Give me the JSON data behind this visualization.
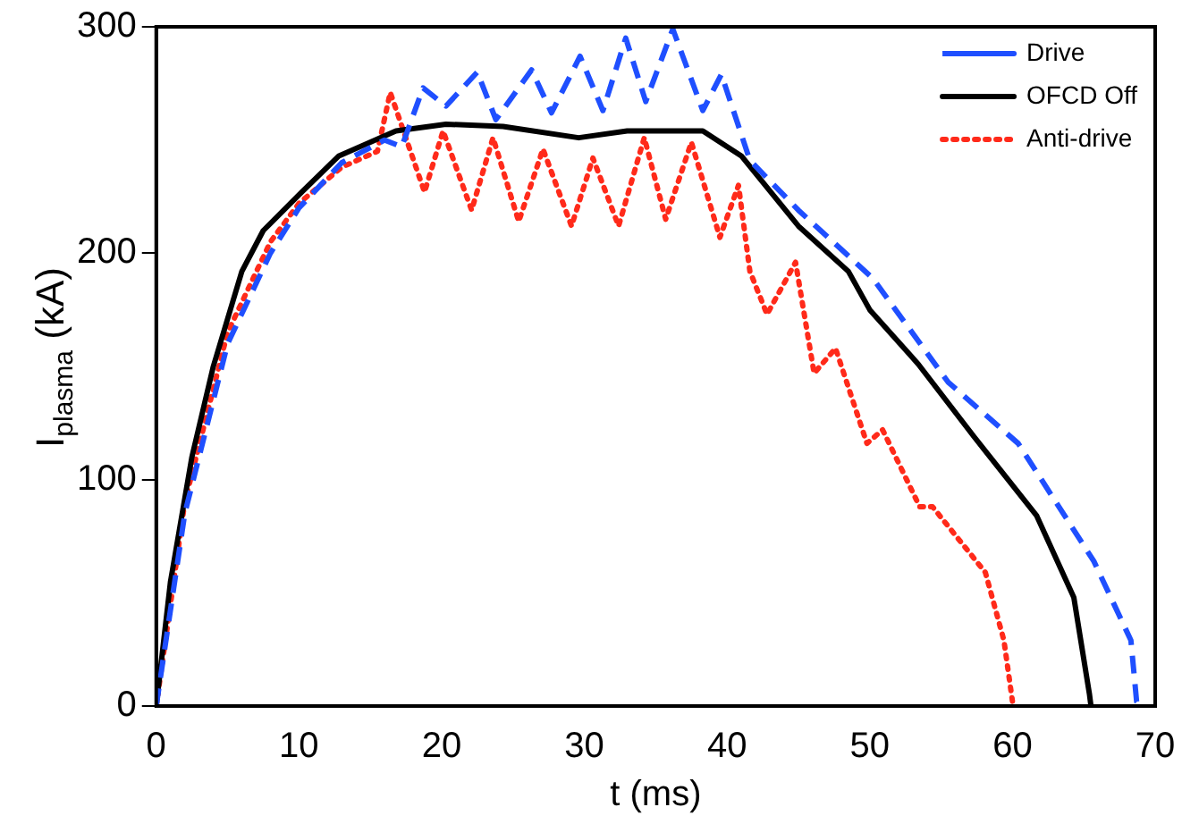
{
  "chart_data": {
    "type": "line",
    "xlabel": "t (ms)",
    "ylabel": "I$_{plasma}$ (kA)",
    "xlim": [
      0,
      70
    ],
    "xticks": [
      0,
      10,
      20,
      30,
      40,
      50,
      60,
      70
    ],
    "ylim": [
      0,
      300
    ],
    "yticks": [
      0,
      100,
      200,
      300
    ],
    "grid": false,
    "legend": "top right",
    "marker": "none",
    "series": [
      {
        "name": "Drive",
        "color": "#1f4fff",
        "line_style": "dashed",
        "x": [
          0,
          2,
          5,
          8,
          10,
          13,
          16,
          17.2,
          18.7,
          20.3,
          22.5,
          23.8,
          26.3,
          27.7,
          29.7,
          31.3,
          32.9,
          34.3,
          36.2,
          38.3,
          39.6,
          41.6,
          45,
          50.2,
          55.5,
          60.4,
          65.7,
          68.3,
          68.7,
          69
        ],
        "values": [
          0,
          85,
          160,
          200,
          220,
          240,
          250,
          247,
          273,
          265,
          280,
          259,
          281,
          262,
          287,
          263,
          295,
          267,
          299,
          263,
          279,
          241,
          219,
          189,
          143,
          116,
          64,
          29,
          2,
          0
        ]
      },
      {
        "name": "OFCD Off",
        "color": "#000000",
        "line_style": "solid",
        "x": [
          0,
          1,
          2.5,
          4,
          6,
          7.5,
          10.2,
          12.8,
          16.8,
          20.3,
          24.3,
          29.6,
          33,
          38.3,
          41,
          45,
          48.5,
          50,
          53.4,
          57.3,
          61.7,
          64.3,
          65.4,
          65.5
        ],
        "values": [
          0,
          55,
          110,
          150,
          192,
          210,
          227,
          243,
          254,
          257,
          256,
          251,
          254,
          254,
          243,
          212,
          192,
          175,
          151,
          119,
          84,
          48,
          5,
          0
        ]
      },
      {
        "name": "Anti-drive",
        "color": "#ff2a1a",
        "line_style": "dotted",
        "x": [
          0,
          2,
          5,
          8,
          10,
          13,
          15.5,
          16.4,
          18.8,
          20.1,
          22.1,
          23.6,
          25.4,
          27.1,
          29.1,
          30.6,
          32.4,
          34.2,
          35.7,
          37.5,
          39.5,
          40.8,
          41.6,
          42.8,
          44.8,
          46.1,
          47.6,
          49.8,
          50.9,
          53.5,
          54.4,
          58.1,
          59.4,
          60,
          60.2
        ],
        "values": [
          0,
          90,
          165,
          205,
          222,
          238,
          245,
          271,
          227,
          254,
          219,
          251,
          214,
          246,
          212,
          242,
          212,
          251,
          215,
          249,
          207,
          230,
          192,
          173,
          196,
          147,
          158,
          116,
          122,
          88,
          88,
          59,
          29,
          2,
          0
        ]
      }
    ]
  }
}
